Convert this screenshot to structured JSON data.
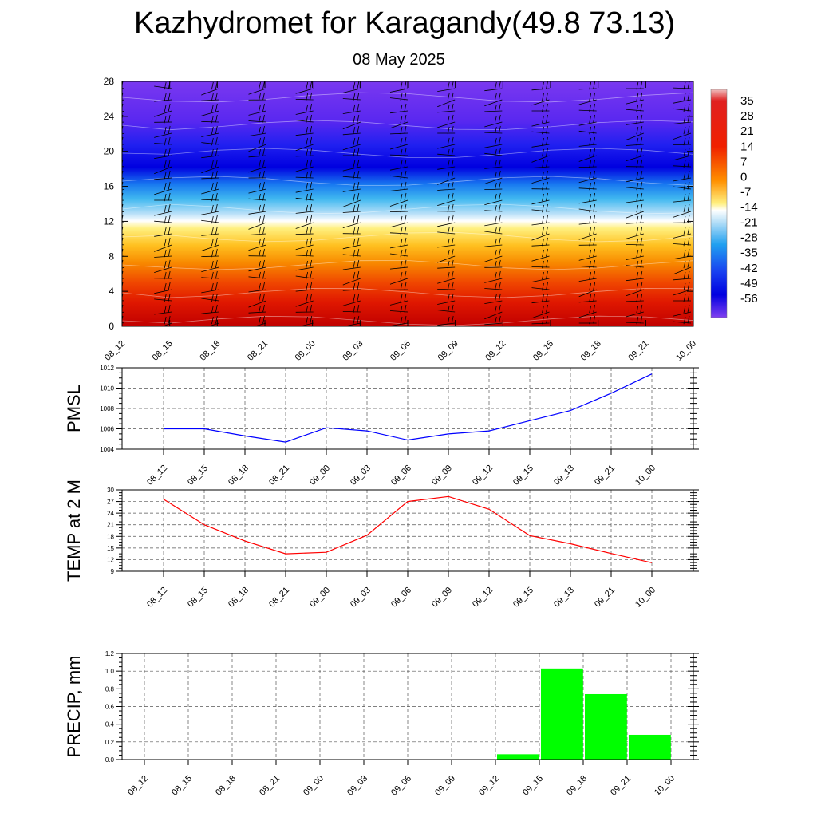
{
  "title": "Kazhydromet for Karagandy(49.8 73.13)",
  "subtitle": "08 May 2025",
  "chart_data": [
    {
      "type": "heatmap",
      "title": "",
      "x_categories": [
        "08_12",
        "08_15",
        "08_18",
        "08_21",
        "09_00",
        "09_03",
        "09_06",
        "09_09",
        "09_12",
        "09_15",
        "09_18",
        "09_21",
        "10_00"
      ],
      "y_ticks": [
        0,
        4,
        8,
        12,
        16,
        20,
        24,
        28
      ],
      "ylim": [
        0,
        28
      ],
      "colorbar_labels": [
        "35",
        "28",
        "21",
        "14",
        "7",
        "0",
        "-7",
        "-14",
        "-21",
        "-28",
        "-35",
        "-42",
        "-49",
        "-56"
      ],
      "colorbar_range": [
        -63,
        42
      ],
      "wind_barbs": true
    },
    {
      "type": "line",
      "ylabel": "PMSL",
      "x_categories": [
        "08_12",
        "08_15",
        "08_18",
        "08_21",
        "09_00",
        "09_03",
        "09_06",
        "09_09",
        "09_12",
        "09_15",
        "09_18",
        "09_21",
        "10_00"
      ],
      "values": [
        1006.0,
        1006.0,
        1005.3,
        1004.7,
        1006.1,
        1005.8,
        1004.9,
        1005.5,
        1005.8,
        1006.8,
        1007.8,
        1009.5,
        1011.4
      ],
      "ylim": [
        1004,
        1012
      ],
      "y_ticks": [
        1004,
        1006,
        1008,
        1010,
        1012
      ],
      "color": "#0000ff",
      "grid": true
    },
    {
      "type": "line",
      "ylabel": "TEMP at 2 M",
      "x_categories": [
        "08_12",
        "08_15",
        "08_18",
        "08_21",
        "09_00",
        "09_03",
        "09_06",
        "09_09",
        "09_12",
        "09_15",
        "09_18",
        "09_21",
        "10_00"
      ],
      "values": [
        27.6,
        21.0,
        16.8,
        13.5,
        13.9,
        18.3,
        27.0,
        28.3,
        25.0,
        18.2,
        16.1,
        13.6,
        11.2
      ],
      "ylim": [
        9,
        30
      ],
      "y_ticks": [
        9,
        12,
        15,
        18,
        21,
        24,
        27,
        30
      ],
      "color": "#ff0000",
      "grid": true
    },
    {
      "type": "bar",
      "ylabel": "PRECIP, mm",
      "x_categories": [
        "08_12",
        "08_15",
        "08_18",
        "08_21",
        "09_00",
        "09_03",
        "09_06",
        "09_09",
        "09_12",
        "09_15",
        "09_18",
        "09_21",
        "10_00"
      ],
      "values": [
        0,
        0,
        0,
        0,
        0,
        0,
        0,
        0,
        0.06,
        1.03,
        0.74,
        0.28,
        0
      ],
      "ylim": [
        0,
        1.2
      ],
      "y_ticks": [
        "0.0",
        "0.2",
        "0.4",
        "0.6",
        "0.8",
        "1.0",
        "1.2"
      ],
      "color": "#00ff00",
      "grid": true
    }
  ]
}
